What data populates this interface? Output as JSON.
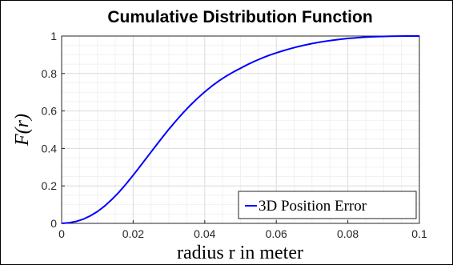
{
  "chart_data": {
    "type": "line",
    "title": "Cumulative Distribution Function",
    "xlabel": "radius r in meter",
    "ylabel": "F(r)",
    "xlim": [
      0,
      0.1
    ],
    "ylim": [
      0,
      1
    ],
    "x_ticks": [
      0,
      0.02,
      0.04,
      0.06,
      0.08,
      0.1
    ],
    "x_tick_labels": [
      "0",
      "0.02",
      "0.04",
      "0.06",
      "0.08",
      "0.1"
    ],
    "y_ticks": [
      0,
      0.2,
      0.4,
      0.6,
      0.8,
      1
    ],
    "y_tick_labels": [
      "0",
      "0.2",
      "0.4",
      "0.6",
      "0.8",
      "1"
    ],
    "grid": true,
    "minor_grid": true,
    "legend_position": "bottom-right",
    "series": [
      {
        "name": "3D Position Error",
        "color": "#0000ff",
        "x": [
          0,
          0.002,
          0.004,
          0.006,
          0.008,
          0.01,
          0.012,
          0.014,
          0.016,
          0.018,
          0.02,
          0.022,
          0.024,
          0.026,
          0.028,
          0.03,
          0.032,
          0.034,
          0.036,
          0.038,
          0.04,
          0.042,
          0.044,
          0.046,
          0.048,
          0.05,
          0.052,
          0.054,
          0.056,
          0.058,
          0.06,
          0.062,
          0.064,
          0.066,
          0.068,
          0.07,
          0.072,
          0.074,
          0.076,
          0.078,
          0.08,
          0.082,
          0.084,
          0.086,
          0.088,
          0.09,
          0.092,
          0.094,
          0.096,
          0.098,
          0.1
        ],
        "y": [
          0,
          0.003,
          0.01,
          0.022,
          0.04,
          0.063,
          0.092,
          0.127,
          0.166,
          0.21,
          0.257,
          0.306,
          0.356,
          0.406,
          0.455,
          0.503,
          0.548,
          0.591,
          0.631,
          0.668,
          0.702,
          0.733,
          0.761,
          0.786,
          0.808,
          0.828,
          0.848,
          0.866,
          0.882,
          0.897,
          0.91,
          0.922,
          0.933,
          0.943,
          0.952,
          0.96,
          0.967,
          0.973,
          0.978,
          0.983,
          0.987,
          0.99,
          0.993,
          0.995,
          0.997,
          0.998,
          0.999,
          0.9995,
          1,
          1,
          1
        ]
      }
    ]
  }
}
